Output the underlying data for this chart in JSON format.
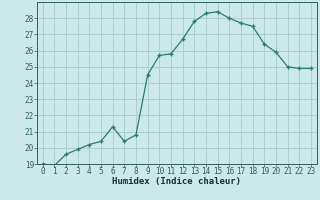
{
  "x": [
    0,
    1,
    2,
    3,
    4,
    5,
    6,
    7,
    8,
    9,
    10,
    11,
    12,
    13,
    14,
    15,
    16,
    17,
    18,
    19,
    20,
    21,
    22,
    23
  ],
  "y": [
    19.0,
    18.9,
    19.6,
    19.9,
    20.2,
    20.4,
    21.3,
    20.4,
    20.8,
    24.5,
    25.7,
    25.8,
    26.7,
    27.8,
    28.3,
    28.4,
    28.0,
    27.7,
    27.5,
    26.4,
    25.9,
    25.0,
    24.9,
    24.9
  ],
  "line_color": "#2d7d6e",
  "marker": "+",
  "marker_color": "#2d7d6e",
  "bg_color": "#cce9e9",
  "grid_color": "#aacfcf",
  "xlabel": "Humidex (Indice chaleur)",
  "ylim": [
    19,
    29
  ],
  "xlim": [
    -0.5,
    23.5
  ],
  "yticks": [
    19,
    20,
    21,
    22,
    23,
    24,
    25,
    26,
    27,
    28
  ],
  "xticks": [
    0,
    1,
    2,
    3,
    4,
    5,
    6,
    7,
    8,
    9,
    10,
    11,
    12,
    13,
    14,
    15,
    16,
    17,
    18,
    19,
    20,
    21,
    22,
    23
  ],
  "tick_color": "#2d6060",
  "label_color": "#1a3030",
  "font_family": "monospace",
  "tick_fontsize": 5.5,
  "xlabel_fontsize": 6.5
}
